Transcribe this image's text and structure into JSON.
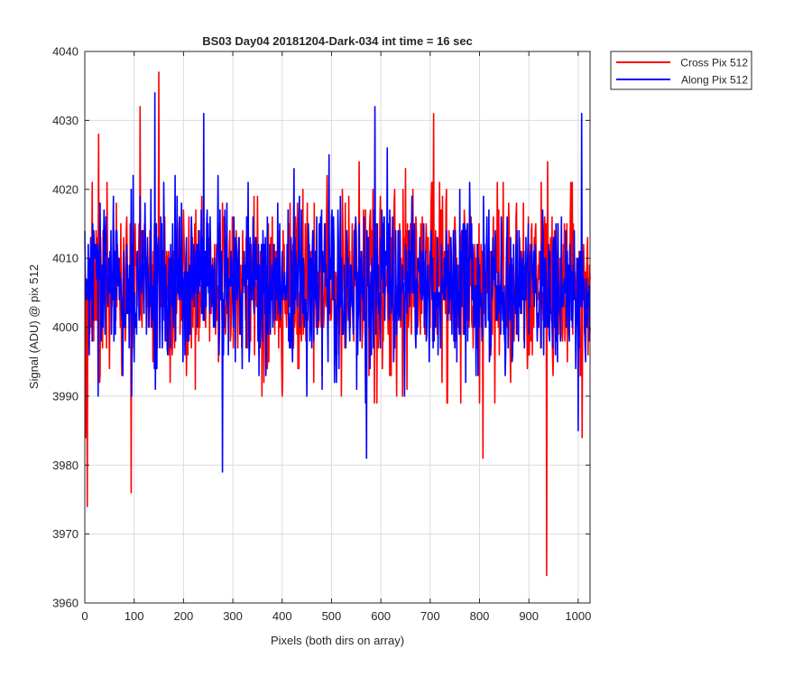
{
  "colors": {
    "cross": "#ff0000",
    "along": "#0000ff",
    "grid": "#dcdcdc",
    "axis": "#262626"
  },
  "chart_data": {
    "type": "line",
    "title": "BS03 Day04 20181204-Dark-034 int time = 16 sec",
    "xlabel": "Pixels (both dirs on array)",
    "ylabel": "Signal (ADU) @ pix 512",
    "xlim": [
      0,
      1024
    ],
    "ylim": [
      3960,
      4040
    ],
    "xticks": [
      0,
      100,
      200,
      300,
      400,
      500,
      600,
      700,
      800,
      900,
      1000
    ],
    "yticks": [
      3960,
      3970,
      3980,
      3990,
      4000,
      4010,
      4020,
      4030,
      4040
    ],
    "grid": true,
    "legend_position": "outside-top-right",
    "series": [
      {
        "name": "Cross Pix 512",
        "color": "#ff0000",
        "noise": {
          "center": 4006,
          "spread": 6.5,
          "seed": 71
        },
        "extremes": [
          {
            "x": 2,
            "y": 3984
          },
          {
            "x": 5,
            "y": 3974
          },
          {
            "x": 28,
            "y": 4028
          },
          {
            "x": 94,
            "y": 3976
          },
          {
            "x": 112,
            "y": 4032
          },
          {
            "x": 150,
            "y": 4037
          },
          {
            "x": 707,
            "y": 4031
          },
          {
            "x": 807,
            "y": 3981
          },
          {
            "x": 936,
            "y": 3964
          },
          {
            "x": 1008,
            "y": 3984
          }
        ]
      },
      {
        "name": "Along Pix 512",
        "color": "#0000ff",
        "noise": {
          "center": 4006,
          "spread": 6.0,
          "seed": 29
        },
        "extremes": [
          {
            "x": 142,
            "y": 4034
          },
          {
            "x": 241,
            "y": 4031
          },
          {
            "x": 279,
            "y": 3979
          },
          {
            "x": 588,
            "y": 4032
          },
          {
            "x": 571,
            "y": 3981
          },
          {
            "x": 1007,
            "y": 4031
          },
          {
            "x": 1000,
            "y": 3985
          }
        ]
      }
    ]
  }
}
